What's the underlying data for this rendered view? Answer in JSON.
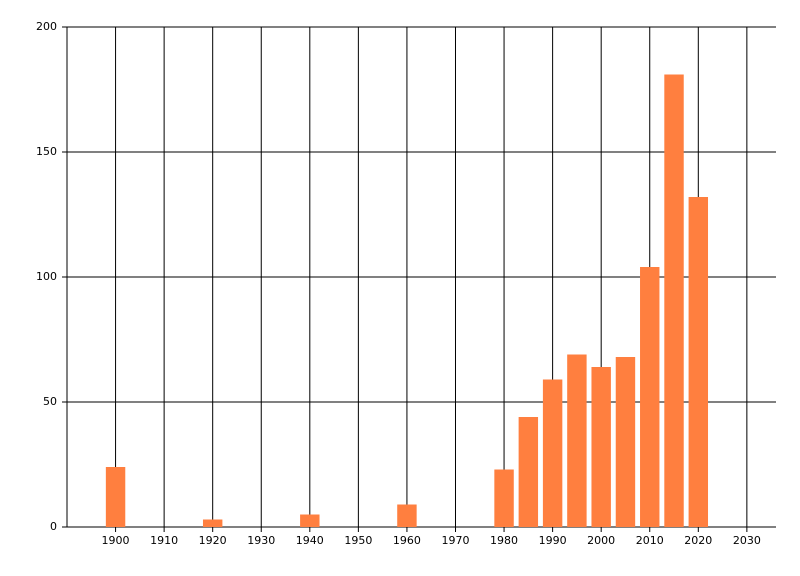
{
  "chart_data": {
    "type": "bar",
    "x": [
      1900,
      1920,
      1940,
      1960,
      1980,
      1985,
      1990,
      1995,
      2000,
      2005,
      2010,
      2015,
      2020
    ],
    "values": [
      24,
      3,
      5,
      9,
      23,
      44,
      59,
      69,
      64,
      68,
      104,
      181,
      132
    ],
    "color": "#ff7f3f",
    "xlim": [
      1890,
      2036
    ],
    "xticks": [
      1900,
      1910,
      1920,
      1930,
      1940,
      1950,
      1960,
      1970,
      1980,
      1990,
      2000,
      2010,
      2020,
      2030
    ],
    "ylim": [
      0,
      200
    ],
    "yticks": [
      0,
      50,
      100,
      150,
      200
    ],
    "grid": true
  }
}
